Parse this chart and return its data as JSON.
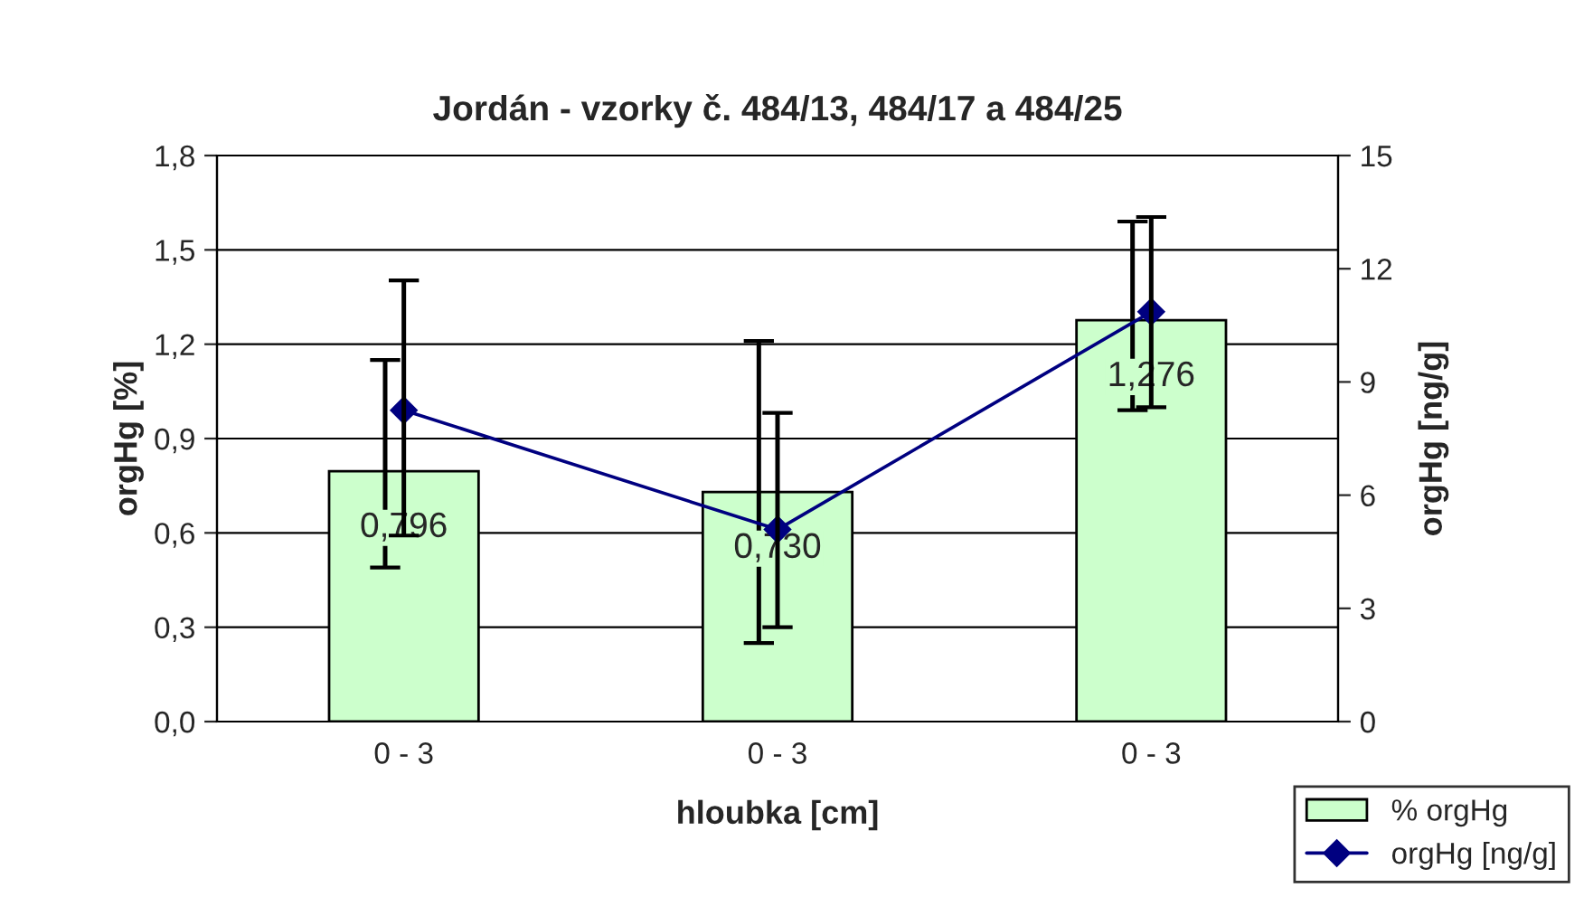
{
  "chart_data": {
    "type": "bar",
    "title": "Jordán - vzorky č. 484/13, 484/17 a 484/25",
    "xlabel": "hloubka [cm]",
    "ylabel": "orgHg [%]",
    "y2label": "orgHg [ng/g]",
    "categories": [
      "0 - 3",
      "0 - 3",
      "0 - 3"
    ],
    "series": [
      {
        "name": "% orgHg",
        "type": "bar",
        "color": "#ccffcc",
        "values": [
          0.796,
          0.73,
          1.276
        ],
        "value_labels": [
          "0,796",
          "0,730",
          "1,276"
        ],
        "errors": [
          [
            0.49,
            1.15
          ],
          [
            0.25,
            1.21
          ],
          [
            0.99,
            1.59
          ]
        ]
      },
      {
        "name": "orgHg [ng/g]",
        "type": "line",
        "axis": "y2",
        "color": "#000080",
        "marker": "diamond",
        "values": [
          8.25,
          5.09,
          10.86
        ],
        "errors": [
          [
            4.93,
            11.69
          ],
          [
            2.5,
            8.18
          ],
          [
            8.33,
            13.37
          ]
        ]
      }
    ],
    "ylim": [
      0,
      1.8
    ],
    "yticks": [
      {
        "value": 0,
        "label": "0,0"
      },
      {
        "value": 0.3,
        "label": "0,3"
      },
      {
        "value": 0.6,
        "label": "0,6"
      },
      {
        "value": 0.9,
        "label": "0,9"
      },
      {
        "value": 1.2,
        "label": "1,2"
      },
      {
        "value": 1.5,
        "label": "1,5"
      },
      {
        "value": 1.8,
        "label": "1,8"
      }
    ],
    "y2lim": [
      0,
      15
    ],
    "y2ticks": [
      0,
      3,
      6,
      9,
      12,
      15
    ],
    "grid": "y",
    "legend": "bottom right"
  }
}
